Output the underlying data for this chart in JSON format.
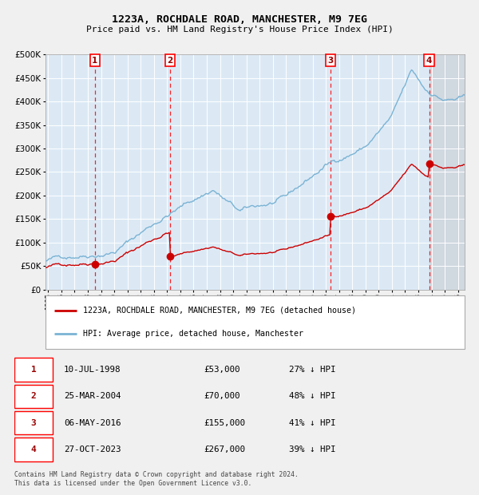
{
  "title": "1223A, ROCHDALE ROAD, MANCHESTER, M9 7EG",
  "subtitle": "Price paid vs. HM Land Registry's House Price Index (HPI)",
  "bg_color": "#dce9f5",
  "hpi_color": "#7ab3d4",
  "price_color": "#cc0000",
  "transactions": [
    {
      "num": 1,
      "date": "10-JUL-1998",
      "price": 53000,
      "year": 1998.53,
      "pct": "27% ↓ HPI"
    },
    {
      "num": 2,
      "date": "25-MAR-2004",
      "price": 70000,
      "year": 2004.23,
      "pct": "48% ↓ HPI"
    },
    {
      "num": 3,
      "date": "06-MAY-2016",
      "price": 155000,
      "year": 2016.35,
      "pct": "41% ↓ HPI"
    },
    {
      "num": 4,
      "date": "27-OCT-2023",
      "price": 267000,
      "year": 2023.82,
      "pct": "39% ↓ HPI"
    }
  ],
  "legend_entries": [
    "1223A, ROCHDALE ROAD, MANCHESTER, M9 7EG (detached house)",
    "HPI: Average price, detached house, Manchester"
  ],
  "footer": "Contains HM Land Registry data © Crown copyright and database right 2024.\nThis data is licensed under the Open Government Licence v3.0.",
  "ylim": [
    0,
    500000
  ],
  "yticks": [
    0,
    50000,
    100000,
    150000,
    200000,
    250000,
    300000,
    350000,
    400000,
    450000,
    500000
  ],
  "xstart": 1994.8,
  "xend": 2026.5
}
